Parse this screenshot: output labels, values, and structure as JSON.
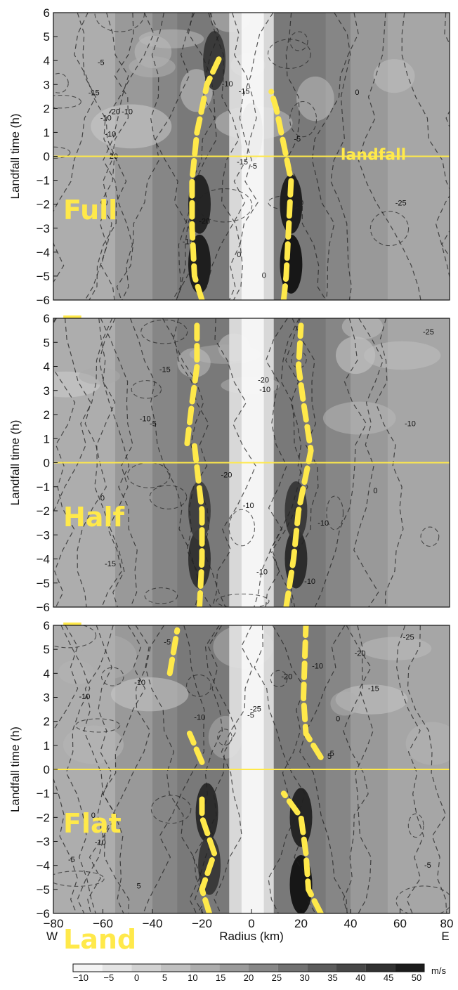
{
  "chart_data": [
    {
      "type": "heatmap",
      "panel": "Full Topo",
      "label_lines": [
        "Full",
        "Topo"
      ],
      "annotation": "landfall",
      "ylabel": "Landfall time (h)",
      "xlim": [
        -80,
        80
      ],
      "ylim": [
        -6,
        6
      ],
      "yticks": [
        6,
        5,
        4,
        3,
        2,
        1,
        0,
        -1,
        -2,
        -3,
        -4,
        -5,
        -6
      ],
      "landfall_line_y": 0,
      "rmw_west": [
        [
          -20,
          -6
        ],
        [
          -23,
          -5
        ],
        [
          -24,
          -3
        ],
        [
          -24,
          -1
        ],
        [
          -22,
          1
        ],
        [
          -20,
          2
        ],
        [
          -18,
          3
        ],
        [
          -13,
          4.1
        ]
      ],
      "rmw_east": [
        [
          13,
          -6
        ],
        [
          14,
          -5
        ],
        [
          15,
          -3
        ],
        [
          16,
          -1
        ],
        [
          14,
          0
        ],
        [
          12,
          1
        ],
        [
          10,
          2
        ],
        [
          8,
          2.7
        ]
      ],
      "core_wind": [
        {
          "r": -21,
          "t": -4.5,
          "v": 48
        },
        {
          "r": -21,
          "t": -2.0,
          "v": 46
        },
        {
          "r": 16,
          "t": -4.5,
          "v": 50
        },
        {
          "r": 16,
          "t": -2.0,
          "v": 48
        },
        {
          "r": 0,
          "t": 1.0,
          "v": -8
        },
        {
          "r": -15,
          "t": 4.0,
          "v": 40
        }
      ],
      "contour_labels": [
        "-15",
        "-5",
        "0",
        "-10",
        "-5",
        "-10",
        "-20",
        "-10",
        "-15",
        "-15",
        "-25",
        "-20",
        "-15",
        "0",
        "-5",
        "0",
        "-20",
        "-10"
      ]
    },
    {
      "type": "heatmap",
      "panel": "Half Topo",
      "label_lines": [
        "Half",
        "Topo"
      ],
      "ylabel": "Landfall time (h)",
      "xlim": [
        -80,
        80
      ],
      "ylim": [
        -6,
        6
      ],
      "yticks": [
        6,
        5,
        4,
        3,
        2,
        1,
        0,
        -1,
        -2,
        -3,
        -4,
        -5,
        -6
      ],
      "landfall_line_y": 0,
      "rmw_west_upper": [
        [
          -26,
          0.8
        ],
        [
          -24,
          2.5
        ],
        [
          -22,
          4
        ],
        [
          -22,
          5.7
        ]
      ],
      "rmw_west": [
        [
          -21,
          -6
        ],
        [
          -20,
          -4
        ],
        [
          -20,
          -2
        ],
        [
          -23,
          0.7
        ]
      ],
      "rmw_east": [
        [
          14,
          -6
        ],
        [
          17,
          -4
        ],
        [
          19,
          -2
        ],
        [
          24,
          0.5
        ],
        [
          21,
          2.5
        ],
        [
          19,
          4
        ],
        [
          20,
          5.7
        ]
      ],
      "core_wind": [
        {
          "r": -21,
          "t": -4.0,
          "v": 42
        },
        {
          "r": -21,
          "t": -2.0,
          "v": 38
        },
        {
          "r": 18,
          "t": -4.0,
          "v": 44
        },
        {
          "r": 18,
          "t": -2.0,
          "v": 40
        }
      ],
      "contour_labels": [
        "-10",
        "-10",
        "-10",
        "-15",
        "-5",
        "-10",
        "-10",
        "-25",
        "-20",
        "-15",
        "-10",
        "-20",
        "-10",
        "0",
        "0"
      ]
    },
    {
      "type": "heatmap",
      "panel": "Flat Land",
      "label_lines": [
        "Flat",
        "Land"
      ],
      "ylabel": "Landfall time (h)",
      "xlabel": "Radius (km)",
      "xlim": [
        -80,
        80
      ],
      "ylim": [
        -6,
        6
      ],
      "xticks": [
        -80,
        -60,
        -40,
        -20,
        0,
        20,
        40,
        60,
        80
      ],
      "xdir_labels": {
        "left": "W",
        "right": "E"
      },
      "yticks": [
        6,
        5,
        4,
        3,
        2,
        1,
        0,
        -1,
        -2,
        -3,
        -4,
        -5,
        -6
      ],
      "landfall_line_y": 0,
      "rmw_west_upper": [
        [
          -33,
          4
        ],
        [
          -30,
          5.8
        ]
      ],
      "rmw_west_mid": [
        [
          -20,
          0.3
        ],
        [
          -25,
          1.5
        ]
      ],
      "rmw_west": [
        [
          -17,
          -6
        ],
        [
          -20,
          -5
        ],
        [
          -15,
          -3.5
        ],
        [
          -20,
          -2
        ],
        [
          -20,
          -1
        ]
      ],
      "rmw_east": [
        [
          28,
          -6
        ],
        [
          23,
          -5
        ],
        [
          22,
          -3.5
        ],
        [
          20,
          -2
        ],
        [
          13,
          -1
        ]
      ],
      "rmw_east_upper": [
        [
          28,
          0.5
        ],
        [
          22,
          1.5
        ],
        [
          21,
          3
        ],
        [
          22,
          6
        ]
      ],
      "core_wind": [
        {
          "r": -18,
          "t": -1.8,
          "v": 44
        },
        {
          "r": -17,
          "t": -4.0,
          "v": 40
        },
        {
          "r": 20,
          "t": -2.0,
          "v": 46
        },
        {
          "r": 20,
          "t": -4.8,
          "v": 50
        }
      ],
      "contour_labels": [
        "-15",
        "-10",
        "-10",
        "-5",
        "-5",
        "-10",
        "-20",
        "-10",
        "-25",
        "-20",
        "-25",
        "5",
        "5",
        "0",
        "-10",
        "-5",
        "0",
        "5",
        "-5"
      ]
    }
  ],
  "colorbar": {
    "ticks": [
      "-10",
      "-5",
      "0",
      "5",
      "10",
      "15",
      "20",
      "25",
      "30",
      "35",
      "40",
      "45",
      "50"
    ],
    "unit": "m/s",
    "colors": [
      "#f4f4f4",
      "#e4e4e4",
      "#d2d2d2",
      "#c0c0c0",
      "#adadad",
      "#9a9a9a",
      "#878787",
      "#717171",
      "#5c5c5c",
      "#474747",
      "#323232",
      "#1c1c1c"
    ]
  },
  "colors": {
    "rmw_line": "#ffe94a",
    "landfall_line": "#ffe94a"
  }
}
